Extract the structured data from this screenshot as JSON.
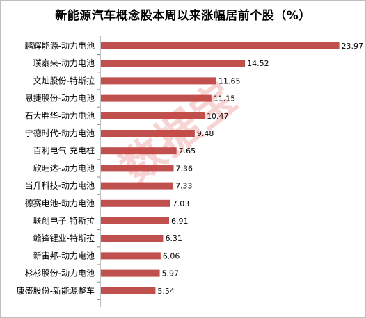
{
  "chart_data": {
    "type": "bar",
    "orientation": "horizontal",
    "title": "新能源汽车概念股本周以来涨幅居前个股（%）",
    "categories": [
      "鹏辉能源-动力电池",
      "璞泰来-动力电池",
      "文灿股份-特斯拉",
      "恩捷股份-动力电池",
      "石大胜华-动力电池",
      "宁德时代-动力电池",
      "百利电气-充电桩",
      "欣旺达-动力电池",
      "当升科技-动力电池",
      "德赛电池-动力电池",
      "联创电子-特斯拉",
      "赣锋锂业-特斯拉",
      "新宙邦-动力电池",
      "杉杉股份-动力电池",
      "康盛股份-新能源整车"
    ],
    "values": [
      23.97,
      14.52,
      11.65,
      11.15,
      10.47,
      9.48,
      7.65,
      7.36,
      7.33,
      7.03,
      6.91,
      6.31,
      6.06,
      5.97,
      5.54
    ],
    "value_labels": [
      "23.97",
      "14.52",
      "11.65",
      "11.15",
      "10.47",
      "9.48",
      "7.65",
      "7.36",
      "7.33",
      "7.03",
      "6.91",
      "6.31",
      "6.06",
      "5.97",
      "5.54"
    ],
    "xlim": [
      0,
      24
    ],
    "grid": false,
    "legend": "none",
    "bar_color": "#c0504d",
    "axis_color": "#868686"
  },
  "watermark": "数据宝"
}
